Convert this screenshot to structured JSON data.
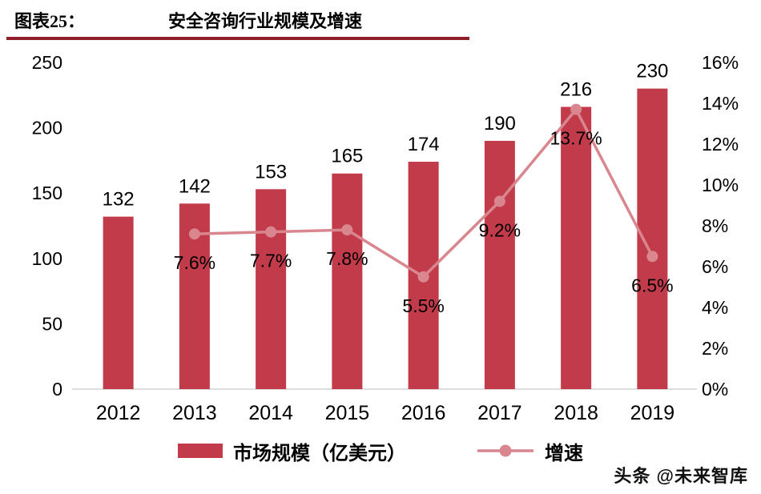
{
  "header": {
    "label": "图表25：",
    "title": "安全咨询行业规模及增速"
  },
  "chart_data": {
    "type": "bar+line",
    "title": "安全咨询行业规模及增速",
    "categories": [
      "2012",
      "2013",
      "2014",
      "2015",
      "2016",
      "2017",
      "2018",
      "2019"
    ],
    "series": [
      {
        "name": "市场规模（亿美元）",
        "type": "bar",
        "axis": "left",
        "values": [
          132,
          142,
          153,
          165,
          174,
          190,
          216,
          230
        ],
        "color": "#c23b4a"
      },
      {
        "name": "增速",
        "type": "line",
        "axis": "right",
        "values": [
          null,
          7.6,
          7.7,
          7.8,
          5.5,
          9.2,
          13.7,
          6.5
        ],
        "labels": [
          "",
          "7.6%",
          "7.7%",
          "7.8%",
          "5.5%",
          "9.2%",
          "13.7%",
          "6.5%"
        ],
        "color": "#d9868e"
      }
    ],
    "left_axis": {
      "min": 0,
      "max": 250,
      "step": 50,
      "ticks": [
        "0",
        "50",
        "100",
        "150",
        "200",
        "250"
      ]
    },
    "right_axis": {
      "min": 0,
      "max": 16,
      "step": 2,
      "ticks": [
        "0%",
        "2%",
        "4%",
        "6%",
        "8%",
        "10%",
        "12%",
        "14%",
        "16%"
      ]
    },
    "grid": false,
    "legend_position": "bottom"
  },
  "watermark": "头条 @未来智库",
  "colors": {
    "bar": "#c23b4a",
    "line": "#d9868e",
    "underline": "#8e1f2b",
    "axis_line": "#c9c9c9",
    "text": "#000000"
  }
}
